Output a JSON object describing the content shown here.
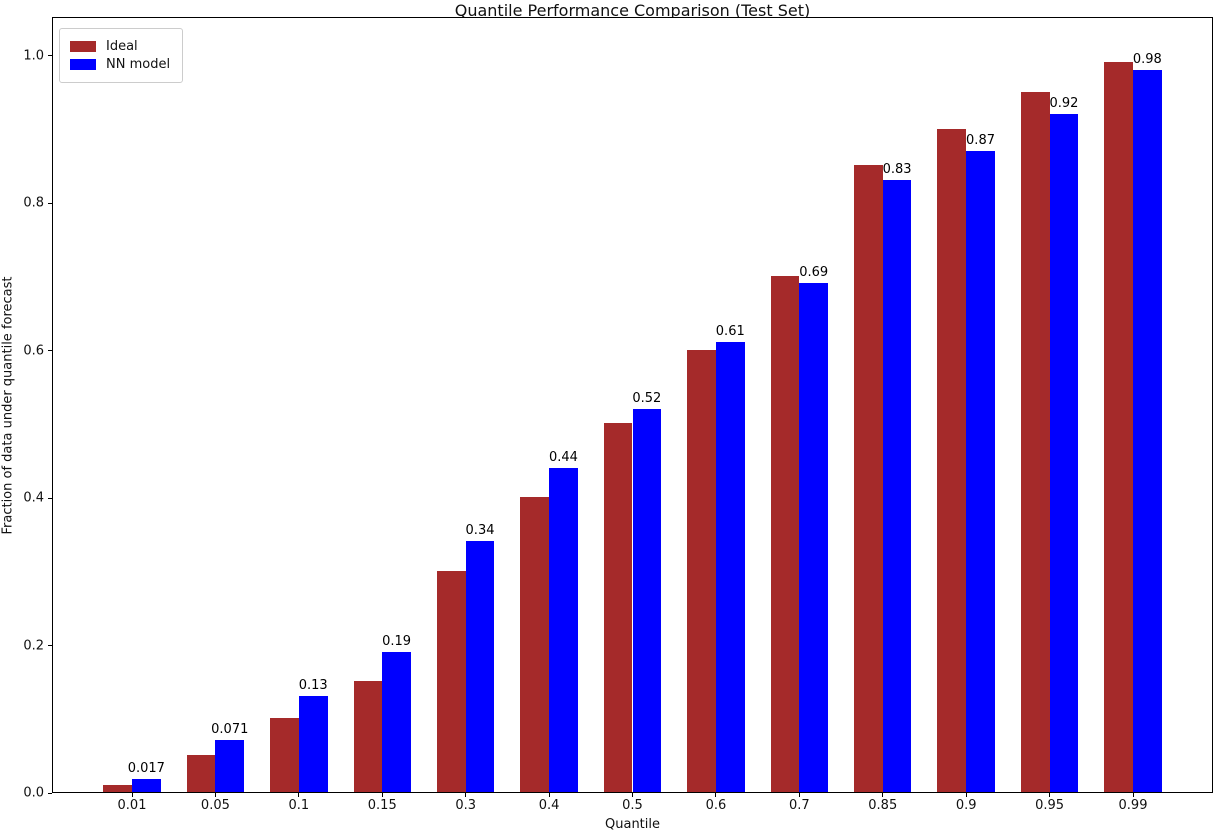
{
  "chart_data": {
    "type": "bar",
    "title": "Quantile Performance Comparison (Test Set)",
    "xlabel": "Quantile",
    "ylabel": "Fraction of data under quantile forecast",
    "categories": [
      "0.01",
      "0.05",
      "0.1",
      "0.15",
      "0.3",
      "0.4",
      "0.5",
      "0.6",
      "0.7",
      "0.85",
      "0.9",
      "0.95",
      "0.99"
    ],
    "series": [
      {
        "name": "Ideal",
        "color": "#A52A2A",
        "values": [
          0.01,
          0.05,
          0.1,
          0.15,
          0.3,
          0.4,
          0.5,
          0.6,
          0.7,
          0.85,
          0.9,
          0.95,
          0.99
        ]
      },
      {
        "name": "NN model",
        "color": "#0000FF",
        "values": [
          0.017,
          0.071,
          0.13,
          0.19,
          0.34,
          0.44,
          0.52,
          0.61,
          0.69,
          0.83,
          0.87,
          0.92,
          0.98
        ],
        "labels": [
          "0.017",
          "0.071",
          "0.13",
          "0.19",
          "0.34",
          "0.44",
          "0.52",
          "0.61",
          "0.69",
          "0.83",
          "0.87",
          "0.92",
          "0.98"
        ]
      }
    ],
    "ylim": [
      0.0,
      1.05
    ],
    "yticks": [
      "0.0",
      "0.2",
      "0.4",
      "0.6",
      "0.8",
      "1.0"
    ],
    "grid": false,
    "legend_position": "upper left",
    "value_labels_on_series": "NN model"
  }
}
